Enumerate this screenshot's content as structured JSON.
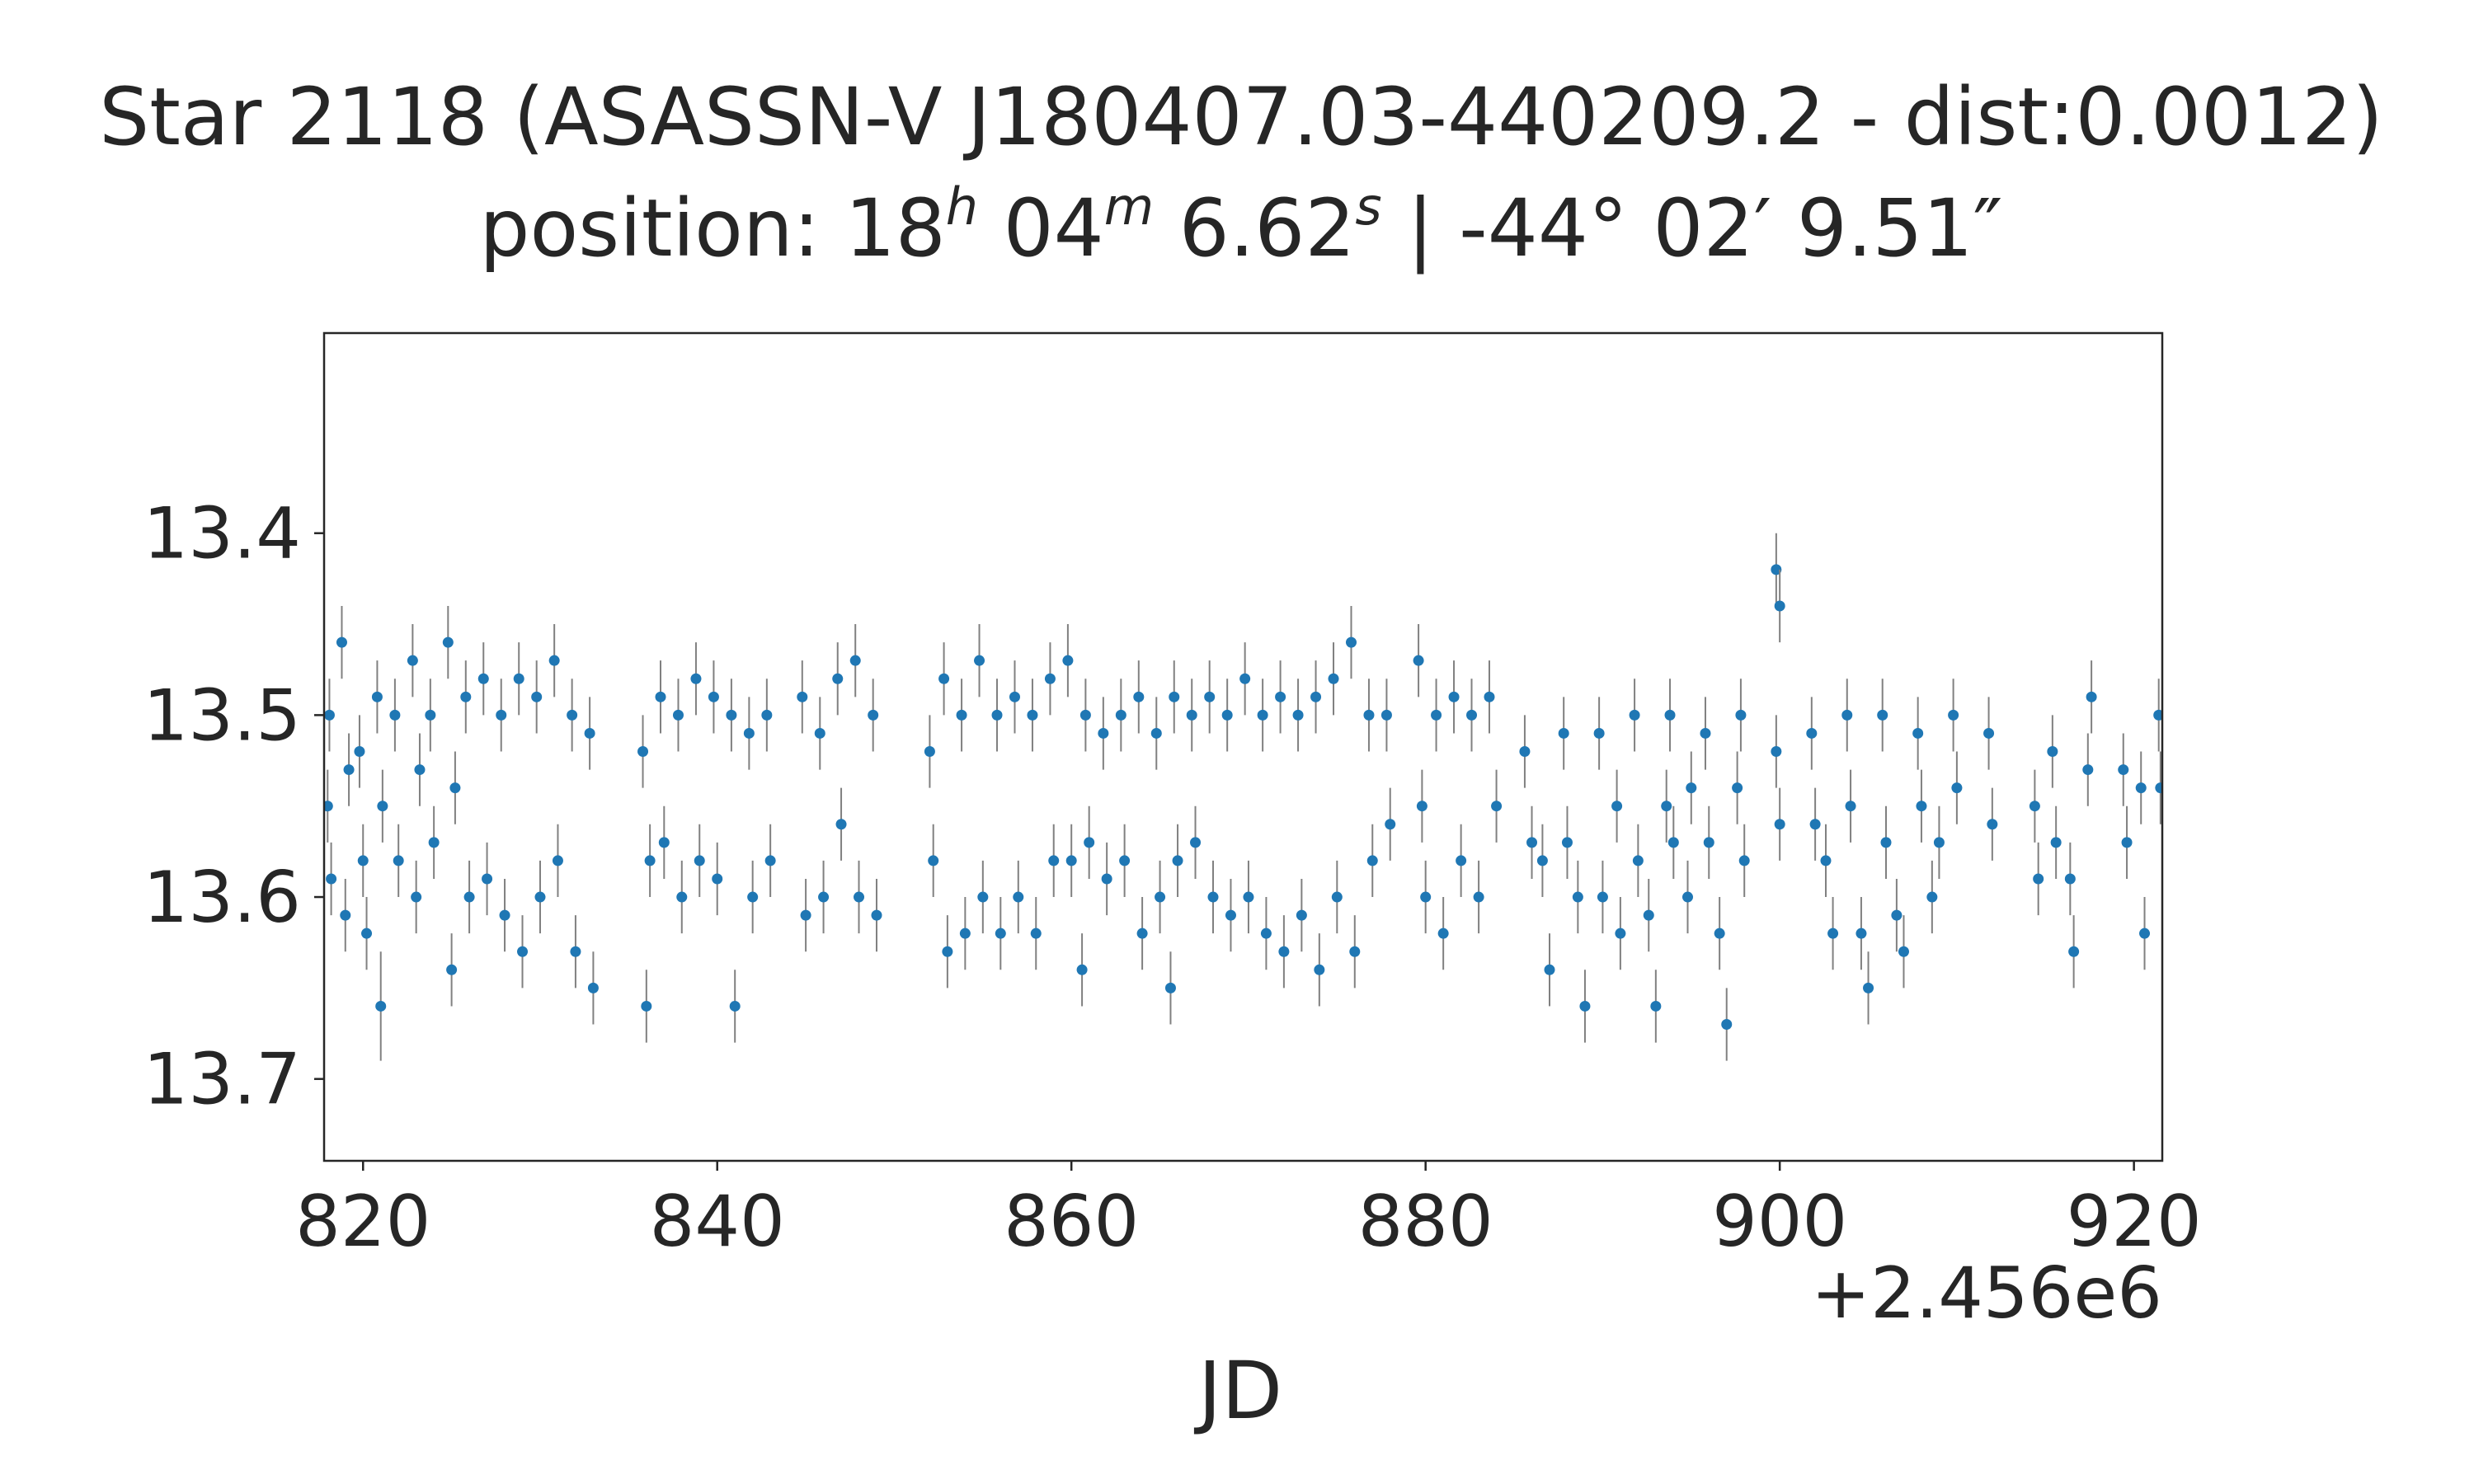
{
  "chart_data": {
    "type": "scatter",
    "title": "Star 2118 (ASASSN-V J180407.03-440209.2 - dist:0.0012)",
    "subtitle": {
      "prefix": "position: 18",
      "h": "h",
      "mid1": " 04",
      "m": "m",
      "mid2": " 6.62",
      "s": "s",
      "tail": " | -44° 02′ 9.51″"
    },
    "xlabel": "JD",
    "ylabel": "",
    "x_offset_label": "+2.456e6",
    "xlim": [
      817.8,
      921.6
    ],
    "ylim": [
      13.745,
      13.29
    ],
    "y_inverted": true,
    "grid": false,
    "x_ticks": [
      820,
      840,
      860,
      880,
      900,
      920
    ],
    "y_ticks": [
      13.4,
      13.5,
      13.6,
      13.7
    ],
    "colors": {
      "points": "#1f77b4",
      "errorbars": "#808080",
      "axes": "#262626"
    },
    "series": [
      {
        "points": [
          [
            818.0,
            13.55,
            0.02
          ],
          [
            818.1,
            13.5,
            0.02
          ],
          [
            818.2,
            13.59,
            0.02
          ],
          [
            818.8,
            13.46,
            0.02
          ],
          [
            819.0,
            13.61,
            0.02
          ],
          [
            819.2,
            13.53,
            0.02
          ],
          [
            819.8,
            13.52,
            0.02
          ],
          [
            820.0,
            13.58,
            0.02
          ],
          [
            820.2,
            13.62,
            0.02
          ],
          [
            820.8,
            13.49,
            0.02
          ],
          [
            821.0,
            13.66,
            0.03
          ],
          [
            821.1,
            13.55,
            0.02
          ],
          [
            821.8,
            13.5,
            0.02
          ],
          [
            822.0,
            13.58,
            0.02
          ],
          [
            822.8,
            13.47,
            0.02
          ],
          [
            823.0,
            13.6,
            0.02
          ],
          [
            823.2,
            13.53,
            0.02
          ],
          [
            823.8,
            13.5,
            0.02
          ],
          [
            824.0,
            13.57,
            0.02
          ],
          [
            824.8,
            13.46,
            0.02
          ],
          [
            825.0,
            13.64,
            0.02
          ],
          [
            825.2,
            13.54,
            0.02
          ],
          [
            825.8,
            13.49,
            0.02
          ],
          [
            826.0,
            13.6,
            0.02
          ],
          [
            826.8,
            13.48,
            0.02
          ],
          [
            827.0,
            13.59,
            0.02
          ],
          [
            827.8,
            13.5,
            0.02
          ],
          [
            828.0,
            13.61,
            0.02
          ],
          [
            828.8,
            13.48,
            0.02
          ],
          [
            829.0,
            13.63,
            0.02
          ],
          [
            829.8,
            13.49,
            0.02
          ],
          [
            830.0,
            13.6,
            0.02
          ],
          [
            830.8,
            13.47,
            0.02
          ],
          [
            831.0,
            13.58,
            0.02
          ],
          [
            831.8,
            13.5,
            0.02
          ],
          [
            832.0,
            13.63,
            0.02
          ],
          [
            832.8,
            13.51,
            0.02
          ],
          [
            833.0,
            13.65,
            0.02
          ],
          [
            835.8,
            13.52,
            0.02
          ],
          [
            836.0,
            13.66,
            0.02
          ],
          [
            836.2,
            13.58,
            0.02
          ],
          [
            836.8,
            13.49,
            0.02
          ],
          [
            837.0,
            13.57,
            0.02
          ],
          [
            837.8,
            13.5,
            0.02
          ],
          [
            838.0,
            13.6,
            0.02
          ],
          [
            838.8,
            13.48,
            0.02
          ],
          [
            839.0,
            13.58,
            0.02
          ],
          [
            839.8,
            13.49,
            0.02
          ],
          [
            840.0,
            13.59,
            0.02
          ],
          [
            840.8,
            13.5,
            0.02
          ],
          [
            841.0,
            13.66,
            0.02
          ],
          [
            841.8,
            13.51,
            0.02
          ],
          [
            842.0,
            13.6,
            0.02
          ],
          [
            842.8,
            13.5,
            0.02
          ],
          [
            843.0,
            13.58,
            0.02
          ],
          [
            844.8,
            13.49,
            0.02
          ],
          [
            845.0,
            13.61,
            0.02
          ],
          [
            845.8,
            13.51,
            0.02
          ],
          [
            846.0,
            13.6,
            0.02
          ],
          [
            846.8,
            13.48,
            0.02
          ],
          [
            847.0,
            13.56,
            0.02
          ],
          [
            847.8,
            13.47,
            0.02
          ],
          [
            848.0,
            13.6,
            0.02
          ],
          [
            848.8,
            13.5,
            0.02
          ],
          [
            849.0,
            13.61,
            0.02
          ],
          [
            852.0,
            13.52,
            0.02
          ],
          [
            852.2,
            13.58,
            0.02
          ],
          [
            852.8,
            13.48,
            0.02
          ],
          [
            853.0,
            13.63,
            0.02
          ],
          [
            853.8,
            13.5,
            0.02
          ],
          [
            854.0,
            13.62,
            0.02
          ],
          [
            854.8,
            13.47,
            0.02
          ],
          [
            855.0,
            13.6,
            0.02
          ],
          [
            855.8,
            13.5,
            0.02
          ],
          [
            856.0,
            13.62,
            0.02
          ],
          [
            856.8,
            13.49,
            0.02
          ],
          [
            857.0,
            13.6,
            0.02
          ],
          [
            857.8,
            13.5,
            0.02
          ],
          [
            858.0,
            13.62,
            0.02
          ],
          [
            858.8,
            13.48,
            0.02
          ],
          [
            859.0,
            13.58,
            0.02
          ],
          [
            859.8,
            13.47,
            0.02
          ],
          [
            860.0,
            13.58,
            0.02
          ],
          [
            860.6,
            13.64,
            0.02
          ],
          [
            860.8,
            13.5,
            0.02
          ],
          [
            861.0,
            13.57,
            0.02
          ],
          [
            861.8,
            13.51,
            0.02
          ],
          [
            862.0,
            13.59,
            0.02
          ],
          [
            862.8,
            13.5,
            0.02
          ],
          [
            863.0,
            13.58,
            0.02
          ],
          [
            863.8,
            13.49,
            0.02
          ],
          [
            864.0,
            13.62,
            0.02
          ],
          [
            864.8,
            13.51,
            0.02
          ],
          [
            865.0,
            13.6,
            0.02
          ],
          [
            865.6,
            13.65,
            0.02
          ],
          [
            865.8,
            13.49,
            0.02
          ],
          [
            866.0,
            13.58,
            0.02
          ],
          [
            866.8,
            13.5,
            0.02
          ],
          [
            867.0,
            13.57,
            0.02
          ],
          [
            867.8,
            13.49,
            0.02
          ],
          [
            868.0,
            13.6,
            0.02
          ],
          [
            868.8,
            13.5,
            0.02
          ],
          [
            869.0,
            13.61,
            0.02
          ],
          [
            869.8,
            13.48,
            0.02
          ],
          [
            870.0,
            13.6,
            0.02
          ],
          [
            870.8,
            13.5,
            0.02
          ],
          [
            871.0,
            13.62,
            0.02
          ],
          [
            871.8,
            13.49,
            0.02
          ],
          [
            872.0,
            13.63,
            0.02
          ],
          [
            872.8,
            13.5,
            0.02
          ],
          [
            873.0,
            13.61,
            0.02
          ],
          [
            873.8,
            13.49,
            0.02
          ],
          [
            874.0,
            13.64,
            0.02
          ],
          [
            874.8,
            13.48,
            0.02
          ],
          [
            875.0,
            13.6,
            0.02
          ],
          [
            875.8,
            13.46,
            0.02
          ],
          [
            876.0,
            13.63,
            0.02
          ],
          [
            876.8,
            13.5,
            0.02
          ],
          [
            877.0,
            13.58,
            0.02
          ],
          [
            877.8,
            13.5,
            0.02
          ],
          [
            878.0,
            13.56,
            0.02
          ],
          [
            879.6,
            13.47,
            0.02
          ],
          [
            879.8,
            13.55,
            0.02
          ],
          [
            880.0,
            13.6,
            0.02
          ],
          [
            880.6,
            13.5,
            0.02
          ],
          [
            881.0,
            13.62,
            0.02
          ],
          [
            881.6,
            13.49,
            0.02
          ],
          [
            882.0,
            13.58,
            0.02
          ],
          [
            882.6,
            13.5,
            0.02
          ],
          [
            883.0,
            13.6,
            0.02
          ],
          [
            883.6,
            13.49,
            0.02
          ],
          [
            884.0,
            13.55,
            0.02
          ],
          [
            885.6,
            13.52,
            0.02
          ],
          [
            886.0,
            13.57,
            0.02
          ],
          [
            886.6,
            13.58,
            0.02
          ],
          [
            887.0,
            13.64,
            0.02
          ],
          [
            887.8,
            13.51,
            0.02
          ],
          [
            888.0,
            13.57,
            0.02
          ],
          [
            888.6,
            13.6,
            0.02
          ],
          [
            889.0,
            13.66,
            0.02
          ],
          [
            889.8,
            13.51,
            0.02
          ],
          [
            890.0,
            13.6,
            0.02
          ],
          [
            890.8,
            13.55,
            0.02
          ],
          [
            891.0,
            13.62,
            0.02
          ],
          [
            891.8,
            13.5,
            0.02
          ],
          [
            892.0,
            13.58,
            0.02
          ],
          [
            892.6,
            13.61,
            0.02
          ],
          [
            893.0,
            13.66,
            0.02
          ],
          [
            893.6,
            13.55,
            0.02
          ],
          [
            893.8,
            13.5,
            0.02
          ],
          [
            894.0,
            13.57,
            0.02
          ],
          [
            894.8,
            13.6,
            0.02
          ],
          [
            895.0,
            13.54,
            0.02
          ],
          [
            895.8,
            13.51,
            0.02
          ],
          [
            896.0,
            13.57,
            0.02
          ],
          [
            896.6,
            13.62,
            0.02
          ],
          [
            897.0,
            13.67,
            0.02
          ],
          [
            897.6,
            13.54,
            0.02
          ],
          [
            897.8,
            13.5,
            0.02
          ],
          [
            898.0,
            13.58,
            0.02
          ],
          [
            899.8,
            13.42,
            0.02
          ],
          [
            900.0,
            13.44,
            0.02
          ],
          [
            899.8,
            13.52,
            0.02
          ],
          [
            900.0,
            13.56,
            0.02
          ],
          [
            901.8,
            13.51,
            0.02
          ],
          [
            902.0,
            13.56,
            0.02
          ],
          [
            902.6,
            13.58,
            0.02
          ],
          [
            903.0,
            13.62,
            0.02
          ],
          [
            903.8,
            13.5,
            0.02
          ],
          [
            904.0,
            13.55,
            0.02
          ],
          [
            904.6,
            13.62,
            0.02
          ],
          [
            905.0,
            13.65,
            0.02
          ],
          [
            905.8,
            13.5,
            0.02
          ],
          [
            906.0,
            13.57,
            0.02
          ],
          [
            906.6,
            13.61,
            0.02
          ],
          [
            907.0,
            13.63,
            0.02
          ],
          [
            907.8,
            13.51,
            0.02
          ],
          [
            908.0,
            13.55,
            0.02
          ],
          [
            908.6,
            13.6,
            0.02
          ],
          [
            909.0,
            13.57,
            0.02
          ],
          [
            909.8,
            13.5,
            0.02
          ],
          [
            910.0,
            13.54,
            0.02
          ],
          [
            911.8,
            13.51,
            0.02
          ],
          [
            912.0,
            13.56,
            0.02
          ],
          [
            914.4,
            13.55,
            0.02
          ],
          [
            914.6,
            13.59,
            0.02
          ],
          [
            915.4,
            13.52,
            0.02
          ],
          [
            915.6,
            13.57,
            0.02
          ],
          [
            916.4,
            13.59,
            0.02
          ],
          [
            916.6,
            13.63,
            0.02
          ],
          [
            917.4,
            13.53,
            0.02
          ],
          [
            917.6,
            13.49,
            0.02
          ],
          [
            919.4,
            13.53,
            0.02
          ],
          [
            919.6,
            13.57,
            0.02
          ],
          [
            920.4,
            13.54,
            0.02
          ],
          [
            920.6,
            13.62,
            0.02
          ],
          [
            921.4,
            13.5,
            0.02
          ],
          [
            921.5,
            13.54,
            0.02
          ]
        ]
      }
    ]
  }
}
